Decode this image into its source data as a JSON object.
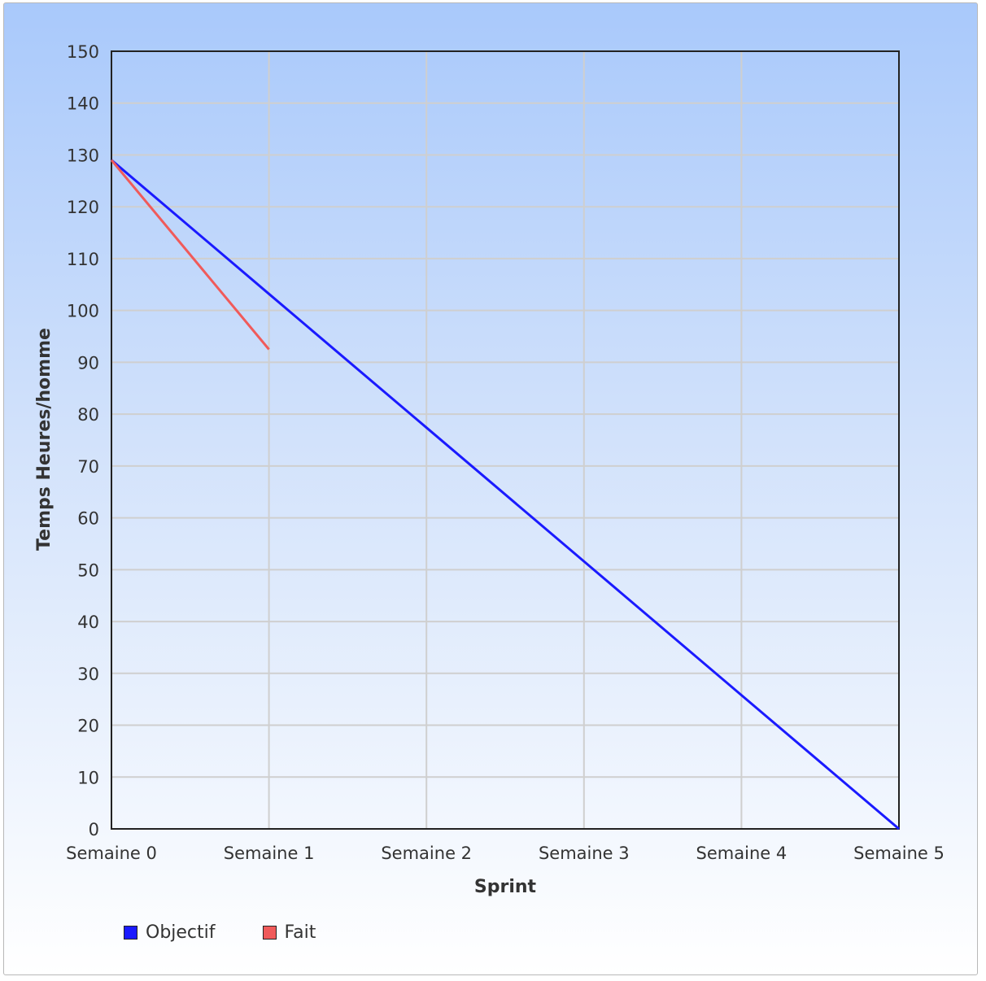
{
  "chart_data": {
    "type": "line",
    "categories": [
      "Semaine 0",
      "Semaine 1",
      "Semaine 2",
      "Semaine 3",
      "Semaine 4",
      "Semaine 5"
    ],
    "series": [
      {
        "name": "Objectif",
        "color": "#1a1aff",
        "values": [
          129,
          103.2,
          77.4,
          51.6,
          25.8,
          0
        ]
      },
      {
        "name": "Fait",
        "color": "#f05a5a",
        "values": [
          129,
          92.5,
          null,
          null,
          null,
          null
        ]
      }
    ],
    "xlabel": "Sprint",
    "ylabel": "Temps Heures/homme",
    "ylim": [
      0,
      150
    ],
    "yticks": [
      0,
      10,
      20,
      30,
      40,
      50,
      60,
      70,
      80,
      90,
      100,
      110,
      120,
      130,
      140,
      150
    ],
    "grid": true,
    "legend_position": "bottom-left"
  }
}
